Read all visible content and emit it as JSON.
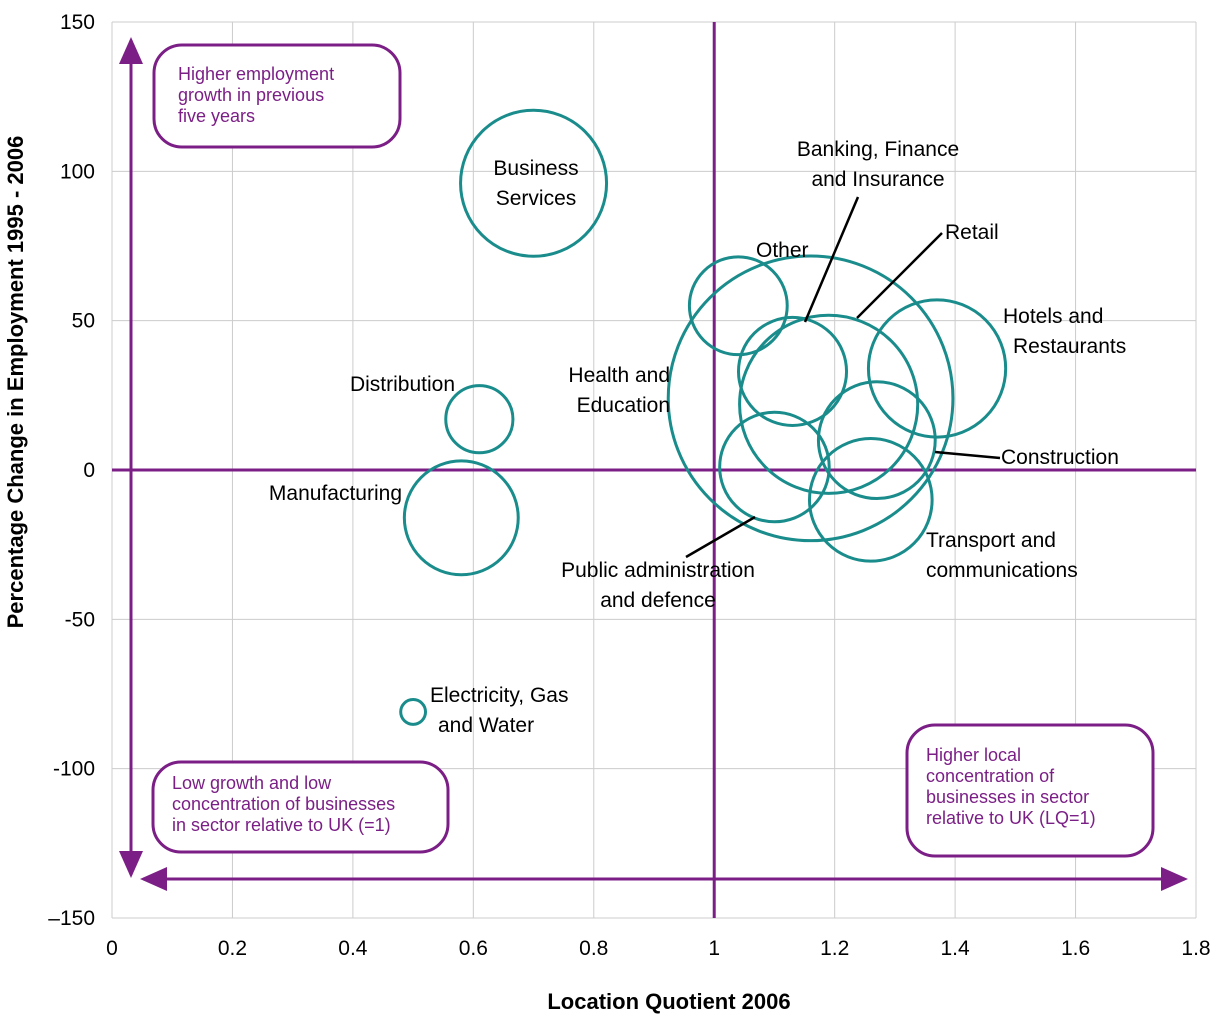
{
  "chart_data": {
    "type": "scatter",
    "xlabel": "Location Quotient 2006",
    "ylabel": "Percentage Change in Employment 1995 - 2006",
    "xlim": [
      0,
      1.8
    ],
    "ylim": [
      -150,
      150
    ],
    "x_ticks": [
      0,
      0.2,
      0.4,
      0.6,
      0.8,
      1,
      1.2,
      1.4,
      1.6,
      1.8
    ],
    "y_ticks": [
      150,
      100,
      50,
      0,
      -50,
      -100,
      -150
    ],
    "y_tick_labels": [
      "150",
      "100",
      "50",
      "0",
      "-50",
      "-100",
      "–150"
    ],
    "grid": true,
    "reference_lines": {
      "x": 1,
      "y": 0
    },
    "colors": {
      "bubble": "#1a8c8c",
      "accent": "#7b1f86",
      "grid": "#cccccc"
    },
    "series": [
      {
        "label_lines": [
          "Business",
          "Services"
        ],
        "x": 0.7,
        "y": 96,
        "size": 1.0
      },
      {
        "label_lines": [
          "Distribution"
        ],
        "x": 0.61,
        "y": 17,
        "size": 0.46
      },
      {
        "label_lines": [
          "Manufacturing"
        ],
        "x": 0.58,
        "y": -16,
        "size": 0.78
      },
      {
        "label_lines": [
          "Electricity, Gas",
          "and Water"
        ],
        "x": 0.5,
        "y": -81,
        "size": 0.17
      },
      {
        "label_lines": [
          "Other"
        ],
        "x": 1.04,
        "y": 55,
        "size": 0.67
      },
      {
        "label_lines": [
          "Banking, Finance",
          "and Insurance"
        ],
        "x": 1.13,
        "y": 33,
        "size": 0.74
      },
      {
        "label_lines": [
          "Retail"
        ],
        "x": 1.19,
        "y": 22,
        "size": 1.22
      },
      {
        "label_lines": [
          "Health and",
          "Education"
        ],
        "x": 1.16,
        "y": 24,
        "size": 1.95
      },
      {
        "label_lines": [
          "Hotels and",
          "Restaurants"
        ],
        "x": 1.37,
        "y": 34,
        "size": 0.94
      },
      {
        "label_lines": [
          "Construction"
        ],
        "x": 1.27,
        "y": 10,
        "size": 0.8
      },
      {
        "label_lines": [
          "Public administration",
          "and defence"
        ],
        "x": 1.1,
        "y": 1,
        "size": 0.75
      },
      {
        "label_lines": [
          "Transport and",
          "communications"
        ],
        "x": 1.26,
        "y": -10,
        "size": 0.84
      }
    ],
    "annotations": [
      {
        "lines": [
          "Higher employment",
          "growth in previous",
          "five years"
        ]
      },
      {
        "lines": [
          "Low growth and low",
          "concentration of businesses",
          "in sector relative to UK (=1)"
        ]
      },
      {
        "lines": [
          "Higher local",
          "concentration of",
          "businesses in sector",
          "relative to UK (LQ=1)"
        ]
      }
    ]
  }
}
